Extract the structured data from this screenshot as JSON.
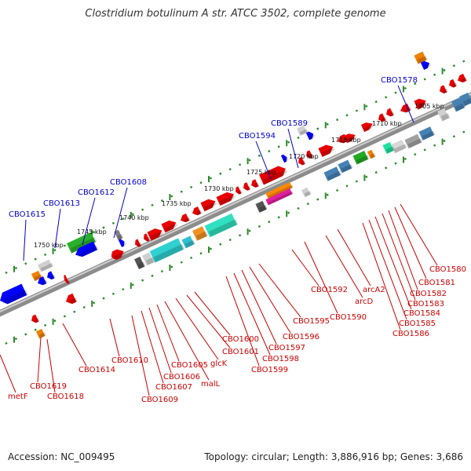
{
  "title": "Clostridium botulinum A str. ATCC 3502, complete genome",
  "footer": {
    "accession": "Accession: NC_009495",
    "summary": "Topology: circular; Length: 3,886,916 bp; Genes: 3,686"
  },
  "colors": {
    "backbone": "#8c8c8c",
    "ticks": "#2a8a2a",
    "upper_labels": "#0000cc",
    "lower_labels": "#cc0000",
    "kbp_labels": "#111111"
  },
  "scale_labels": [
    "1705 kbp",
    "1710 kbp",
    "1715 kbp",
    "1720 kbp",
    "1725 kbp",
    "1730 kbp",
    "1735 kbp",
    "1740 kbp",
    "1745 kbp",
    "1750 kbp"
  ],
  "upper_genes": [
    "CBO1578",
    "CBO1589",
    "CBO1594",
    "CBO1608",
    "CBO1612",
    "CBO1613",
    "CBO1615"
  ],
  "lower_genes": [
    "CBO1580",
    "CBO1581",
    "CBO1582",
    "CBO1583",
    "CBO1584",
    "CBO1585",
    "CBO1586",
    "arcA2",
    "arcD",
    "CBO1590",
    "CBO1592",
    "CBO1595",
    "CBO1596",
    "CBO1597",
    "CBO1598",
    "CBO1599",
    "CBO1600",
    "CBO1601",
    "glcK",
    "malL",
    "CBO1605",
    "CBO1606",
    "CBO1607",
    "CBO1609",
    "CBO1610",
    "CBO1614",
    "CBO1618",
    "CBO1619",
    "metF"
  ]
}
